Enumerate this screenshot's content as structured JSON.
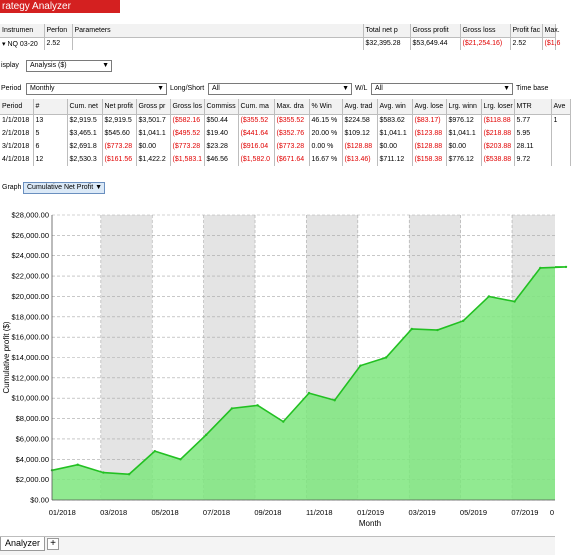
{
  "window": {
    "title": "rategy Analyzer"
  },
  "instruments": {
    "headers": [
      "Instrumen",
      "Perfon",
      "Parameters",
      "Total net p",
      "Gross profit",
      "Gross loss",
      "Profit fac",
      "Max."
    ],
    "row": {
      "instrument": "NQ 03-20",
      "performance": "2.52",
      "parameters": "",
      "total_net": "$32,395.28",
      "gross_profit": "$53,649.44",
      "gross_loss": "($21,254.16)",
      "profit_factor": "2.52",
      "max": "($1,6"
    }
  },
  "display": {
    "label": "isplay",
    "value": "Analysis ($)"
  },
  "filters": {
    "period_label": "Period",
    "period_value": "Monthly",
    "longshort_label": "Long/Short",
    "longshort_value": "All",
    "wl_label": "W/L",
    "wl_value": "All",
    "timebase_label": "Time base"
  },
  "period_table": {
    "headers": [
      "Period",
      "#",
      "Cum. net",
      "Net profit",
      "Gross pr",
      "Gross los",
      "Commiss",
      "Cum. ma",
      "Max. dra",
      "% Win",
      "Avg. trad",
      "Avg. win",
      "Avg. lose",
      "Lrg. winn",
      "Lrg. loser",
      "MTR",
      "Ave"
    ],
    "rows": [
      [
        "1/1/2018",
        "13",
        "$2,919.5",
        "$2,919.5",
        "$3,501.7",
        "($582.16",
        "$50.44",
        "($355.52",
        "($355.52",
        "46.15 %",
        "$224.58",
        "$583.62",
        "($83.17)",
        "$976.12",
        "($118.88",
        "5.77",
        "1"
      ],
      [
        "2/1/2018",
        "5",
        "$3,465.1",
        "$545.60",
        "$1,041.1",
        "($495.52",
        "$19.40",
        "($441.64",
        "($352.76",
        "20.00 %",
        "$109.12",
        "$1,041.1",
        "($123.88",
        "$1,041.1",
        "($218.88",
        "5.95",
        ""
      ],
      [
        "3/1/2018",
        "6",
        "$2,691.8",
        "($773.28",
        "$0.00",
        "($773.28",
        "$23.28",
        "($916.04",
        "($773.28",
        "0.00 %",
        "($128.88",
        "$0.00",
        "($128.88",
        "$0.00",
        "($203.88",
        "28.11",
        ""
      ],
      [
        "4/1/2018",
        "12",
        "$2,530.3",
        "($161.56",
        "$1,422.2",
        "($1,583.1",
        "$46.56",
        "($1,582.0",
        "($671.64",
        "16.67 %",
        "($13.46)",
        "$711.12",
        "($158.38",
        "$776.12",
        "($538.88",
        "9.72",
        ""
      ]
    ],
    "red_cols": [
      5,
      7,
      8,
      12,
      14
    ]
  },
  "graph": {
    "label": "Graph",
    "value": "Cumulative Net Profit"
  },
  "chart_data": {
    "type": "area",
    "title": "",
    "xlabel": "Month",
    "ylabel": "Cumulative profit ($)",
    "ylim": [
      0,
      28000
    ],
    "y_ticks": [
      "$0.00",
      "$2,000.00",
      "$4,000.00",
      "$6,000.00",
      "$8,000.00",
      "$10,000.00",
      "$12,000.00",
      "$14,000.00",
      "$16,000.00",
      "$18,000.00",
      "$20,000.00",
      "$22,000.00",
      "$24,000.00",
      "$26,000.00",
      "$28,000.00"
    ],
    "x_tick_labels": [
      "01/2018",
      "03/2018",
      "05/2018",
      "07/2018",
      "09/2018",
      "11/2018",
      "01/2019",
      "03/2019",
      "05/2019",
      "07/2019",
      "0"
    ],
    "categories": [
      "01/2018",
      "02/2018",
      "03/2018",
      "04/2018",
      "05/2018",
      "06/2018",
      "07/2018",
      "08/2018",
      "09/2018",
      "10/2018",
      "11/2018",
      "12/2018",
      "01/2019",
      "02/2019",
      "03/2019",
      "04/2019",
      "05/2019",
      "06/2019",
      "07/2019",
      "08/2019",
      "09/2019"
    ],
    "values": [
      2919.5,
      3465.1,
      2691.8,
      2530.3,
      4800,
      4000,
      6400,
      9000,
      9300,
      7700,
      10500,
      9800,
      13200,
      14000,
      16800,
      16700,
      17600,
      20000,
      19500,
      22800,
      22900
    ],
    "grid": true,
    "fill_color": "#7ee67e",
    "line_color": "#22c022",
    "band_color": "#e4e4e4"
  },
  "tabs": {
    "active": "Analyzer",
    "add": "+"
  }
}
